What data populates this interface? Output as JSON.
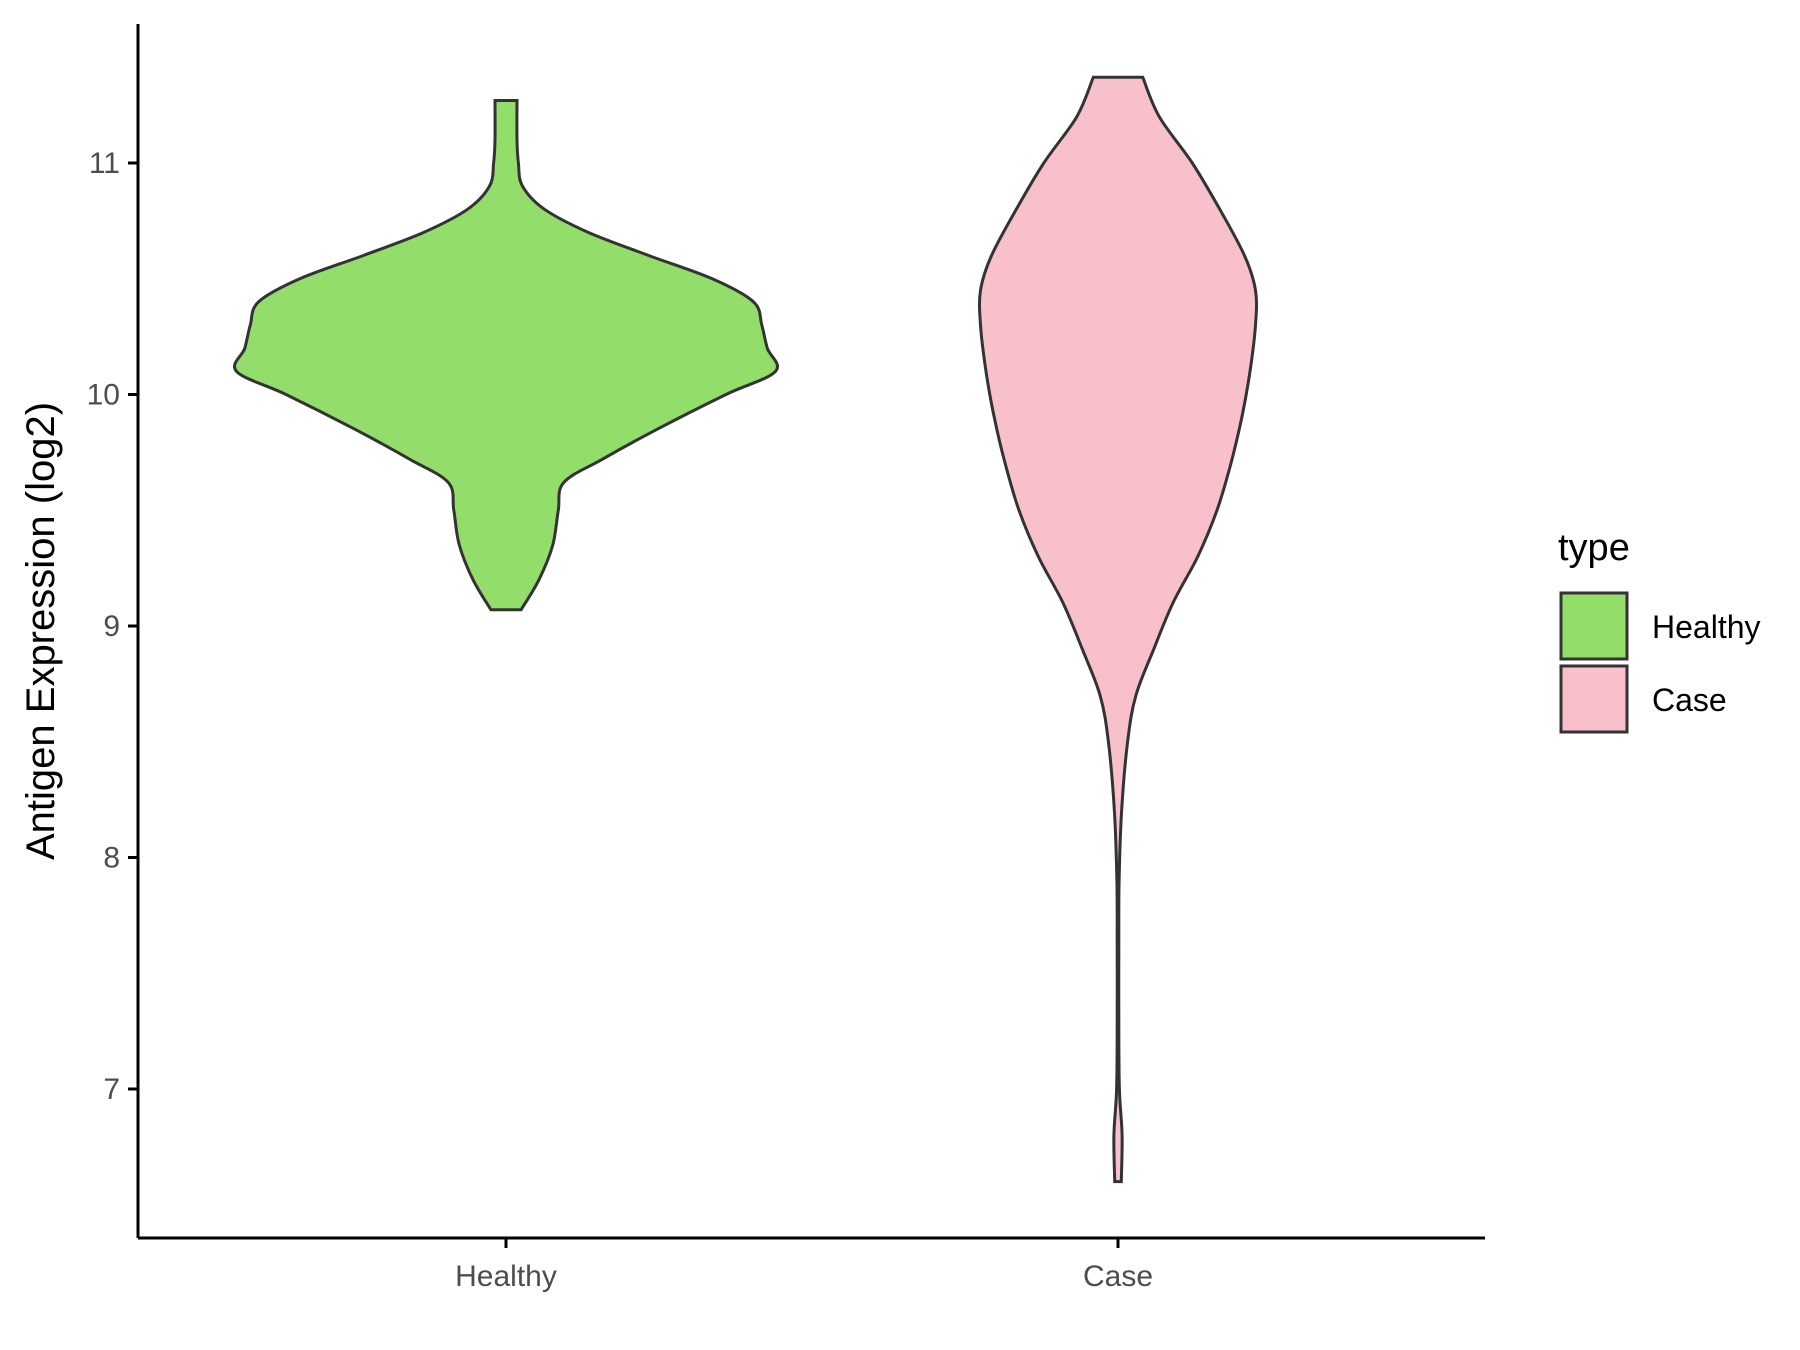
{
  "chart_data": {
    "type": "violin",
    "title": "",
    "xlabel": "",
    "ylabel": "Antigen Expression (log2)",
    "ylim": [
      6.4,
      11.6
    ],
    "y_ticks": [
      7,
      8,
      9,
      10,
      11
    ],
    "grid": false,
    "categories": [
      "Healthy",
      "Case"
    ],
    "series": [
      {
        "name": "Healthy",
        "color": "#93DD6B",
        "min": 9.07,
        "max": 11.27,
        "density_profile": [
          [
            9.07,
            0.055
          ],
          [
            9.2,
            0.12
          ],
          [
            9.35,
            0.17
          ],
          [
            9.5,
            0.19
          ],
          [
            9.62,
            0.21
          ],
          [
            9.72,
            0.35
          ],
          [
            9.85,
            0.55
          ],
          [
            10.0,
            0.8
          ],
          [
            10.1,
            0.98
          ],
          [
            10.2,
            0.95
          ],
          [
            10.3,
            0.93
          ],
          [
            10.4,
            0.9
          ],
          [
            10.5,
            0.75
          ],
          [
            10.6,
            0.52
          ],
          [
            10.7,
            0.3
          ],
          [
            10.8,
            0.14
          ],
          [
            10.9,
            0.06
          ],
          [
            11.0,
            0.045
          ],
          [
            11.1,
            0.04
          ],
          [
            11.27,
            0.04
          ]
        ]
      },
      {
        "name": "Case",
        "color": "#F7C0CB",
        "min": 6.6,
        "max": 11.37,
        "density_profile": [
          [
            6.6,
            0.012
          ],
          [
            6.8,
            0.015
          ],
          [
            7.0,
            0.005
          ],
          [
            7.3,
            0.003
          ],
          [
            7.6,
            0.003
          ],
          [
            7.9,
            0.004
          ],
          [
            8.2,
            0.013
          ],
          [
            8.5,
            0.035
          ],
          [
            8.7,
            0.065
          ],
          [
            8.9,
            0.13
          ],
          [
            9.1,
            0.2
          ],
          [
            9.3,
            0.29
          ],
          [
            9.5,
            0.36
          ],
          [
            9.7,
            0.41
          ],
          [
            9.9,
            0.45
          ],
          [
            10.1,
            0.48
          ],
          [
            10.3,
            0.5
          ],
          [
            10.45,
            0.5
          ],
          [
            10.6,
            0.46
          ],
          [
            10.8,
            0.37
          ],
          [
            11.0,
            0.27
          ],
          [
            11.2,
            0.15
          ],
          [
            11.37,
            0.09
          ]
        ]
      }
    ],
    "legend": {
      "title": "type",
      "position": "right",
      "items": [
        {
          "label": "Healthy",
          "color": "#93DD6B"
        },
        {
          "label": "Case",
          "color": "#F7C0CB"
        }
      ]
    }
  }
}
